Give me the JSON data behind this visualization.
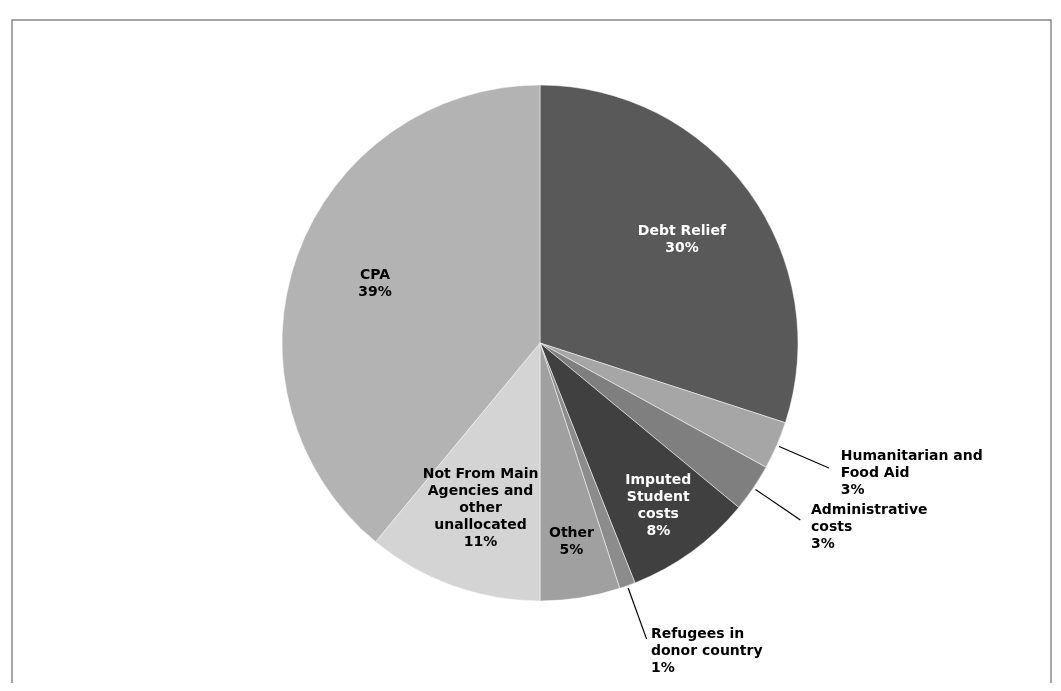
{
  "chart_data": {
    "type": "pie",
    "categories": [
      "Debt Relief",
      "Humanitarian and Food Aid",
      "Administrative costs",
      "Imputed Student costs",
      "Refugees in donor country",
      "Other",
      "Not From Main Agencies and other unallocated",
      "CPA"
    ],
    "values": [
      30,
      3,
      3,
      8,
      1,
      5,
      11,
      39
    ],
    "value_labels": [
      "30%",
      "3%",
      "3%",
      "8%",
      "1%",
      "5%",
      "11%",
      "39%"
    ],
    "colors": [
      "#595959",
      "#a6a6a6",
      "#7f7f7f",
      "#404040",
      "#8c8c8c",
      "#a0a0a0",
      "#d4d4d4",
      "#b3b3b3"
    ]
  }
}
